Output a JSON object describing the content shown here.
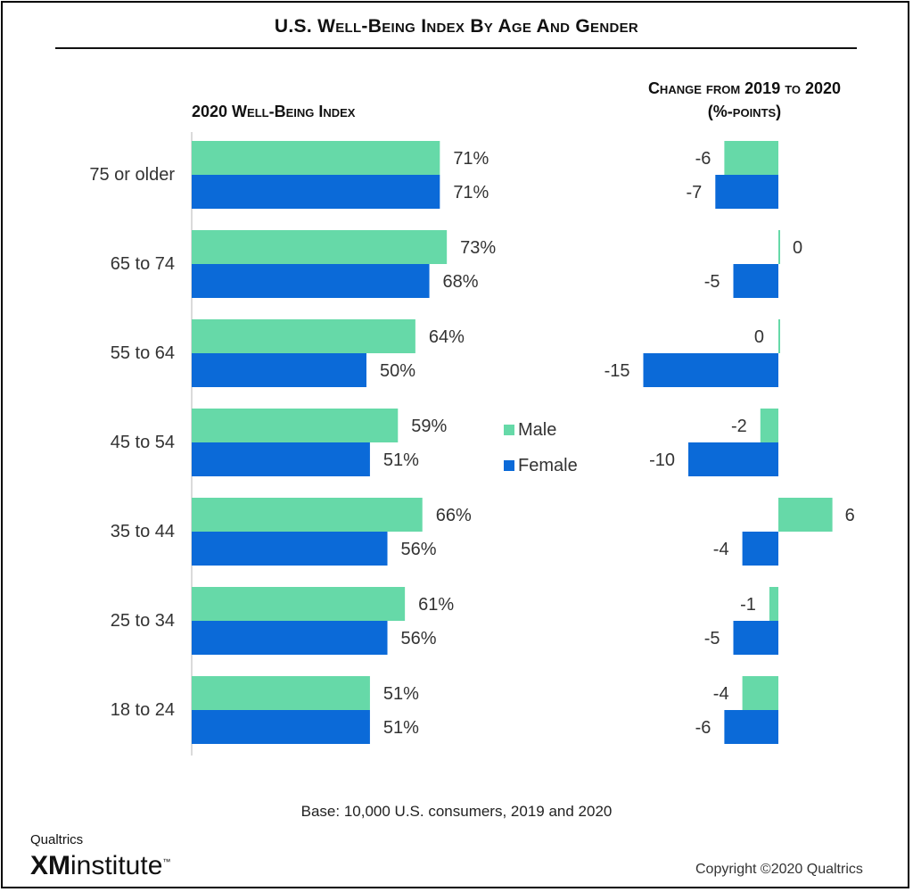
{
  "colors": {
    "male": "#66d9a8",
    "female": "#0b6ad8",
    "axis": "#cfcfcf",
    "label": "#333333"
  },
  "chart_data": {
    "type": "bar",
    "title": "U.S. Well-Being Index By Age And Gender",
    "legend": [
      {
        "name": "Male"
      },
      {
        "name": "Female"
      }
    ],
    "legend_placement": "center",
    "categories": [
      "75 or older",
      "65 to 74",
      "55 to 64",
      "45 to 54",
      "35 to 44",
      "25 to 34",
      "18 to 24"
    ],
    "panels": [
      {
        "subtitle": "2020 Well-Being Index",
        "unit": "%",
        "xlim": [
          0,
          100
        ],
        "series": [
          {
            "name": "Male",
            "values": [
              71,
              73,
              64,
              59,
              66,
              61,
              51
            ],
            "labels": [
              "71%",
              "73%",
              "64%",
              "59%",
              "66%",
              "61%",
              "51%"
            ]
          },
          {
            "name": "Female",
            "values": [
              71,
              68,
              50,
              51,
              56,
              56,
              51
            ],
            "labels": [
              "71%",
              "68%",
              "50%",
              "51%",
              "56%",
              "56%",
              "51%"
            ]
          }
        ]
      },
      {
        "subtitle": "Change from 2019 to 2020 (%-points)",
        "unit": "%-points",
        "xlim": [
          -16,
          7
        ],
        "series": [
          {
            "name": "Male",
            "values": [
              -6,
              0,
              0,
              -2,
              6,
              -1,
              -4
            ],
            "labels": [
              "-6",
              "0",
              "0",
              "-2",
              "6",
              "-1",
              "-4"
            ]
          },
          {
            "name": "Female",
            "values": [
              -7,
              -5,
              -15,
              -10,
              -4,
              -5,
              -6
            ],
            "labels": [
              "-7",
              "-5",
              "-15",
              "-10",
              "-4",
              "-5",
              "-6"
            ]
          }
        ]
      }
    ]
  },
  "text": {
    "title": "U.S. Well-Being Index By Age And Gender",
    "left_subtitle": "2020 Well-Being Index",
    "right_subtitle_line1": "Change from 2019 to 2020",
    "right_subtitle_line2": "(%-points)",
    "legend_male": "Male",
    "legend_female": "Female",
    "base": "Base: 10,000 U.S. consumers, 2019 and 2020",
    "copyright": "Copyright ©2020 Qualtrics",
    "logo_top": "Qualtrics",
    "logo_xm": "XM",
    "logo_word": "institute",
    "logo_tm": "™"
  }
}
